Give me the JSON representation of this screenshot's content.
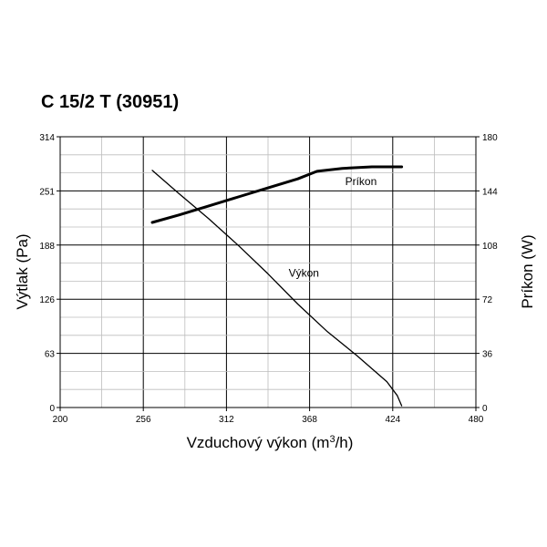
{
  "chart_data": {
    "type": "line",
    "title": "C 15/2 T (30951)",
    "xlabel": "Vzduchový výkon (m3/h)",
    "xlabel_parts": [
      "Vzduchový výkon (m",
      "3",
      "/h)"
    ],
    "ylabel_left": "Výtlak (Pa)",
    "ylabel_right": "Príkon (W)",
    "xlim": [
      200,
      480
    ],
    "ylim_left": [
      0,
      314
    ],
    "ylim_right": [
      0,
      180
    ],
    "x_ticks": [
      "200",
      "256",
      "312",
      "368",
      "424",
      "480"
    ],
    "y_left_ticks": [
      "0",
      "63",
      "126",
      "188",
      "251",
      "314"
    ],
    "y_right_ticks": [
      "0",
      "36",
      "72",
      "108",
      "144",
      "180"
    ],
    "grid": true,
    "series": [
      {
        "name": "Výkon",
        "axis": "left",
        "x": [
          262,
          280,
          300,
          320,
          340,
          360,
          380,
          400,
          420,
          427,
          430
        ],
        "y": [
          275,
          248,
          219,
          188,
          155,
          120,
          88,
          60,
          30,
          14,
          2
        ]
      },
      {
        "name": "Príkon",
        "axis": "right",
        "x": [
          262,
          280,
          300,
          320,
          340,
          360,
          373,
          390,
          410,
          430
        ],
        "y": [
          123,
          128,
          134,
          140,
          146,
          152,
          157,
          159,
          160,
          160
        ]
      }
    ]
  }
}
